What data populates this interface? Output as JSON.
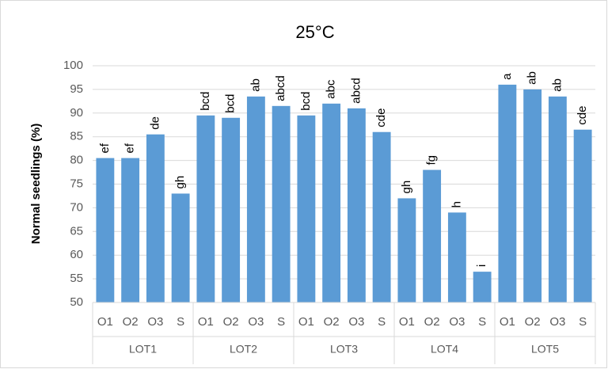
{
  "chart_data": {
    "type": "bar",
    "title": "25°C",
    "y_label": "Normal seedlings (%)",
    "categories": [
      "O1",
      "O2",
      "O3",
      "S",
      "O1",
      "O2",
      "O3",
      "S",
      "O1",
      "O2",
      "O3",
      "S",
      "O1",
      "O2",
      "O3",
      "S",
      "O1",
      "O2",
      "O3",
      "S"
    ],
    "groups": [
      "LOT1",
      "LOT2",
      "LOT3",
      "LOT4",
      "LOT5"
    ],
    "values": [
      80.5,
      80.5,
      85.5,
      73,
      89.5,
      89,
      93.5,
      91.5,
      89.5,
      92,
      91,
      86,
      72,
      78,
      69,
      56.5,
      96,
      95,
      93.5,
      86.5
    ],
    "annotations": [
      "ef",
      "ef",
      "de",
      "gh",
      "bcd",
      "bcd",
      "ab",
      "abcd",
      "bcd",
      "abc",
      "abcd",
      "cde",
      "gh",
      "fg",
      "h",
      "i",
      "a",
      "ab",
      "ab",
      "cde"
    ],
    "color": "#5b9bd5",
    "ylim": [
      50,
      100
    ],
    "yticks": [
      50,
      55,
      60,
      65,
      70,
      75,
      80,
      85,
      90,
      95,
      100
    ],
    "grid": true
  }
}
